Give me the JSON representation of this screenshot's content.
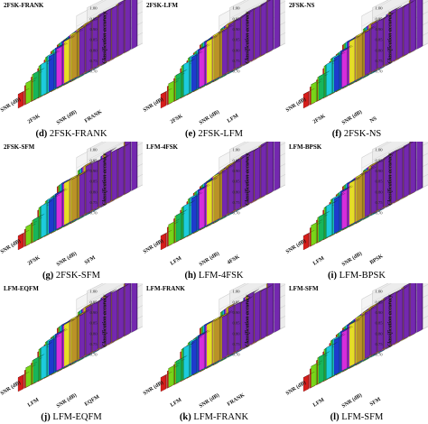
{
  "figure": {
    "axis_labels": {
      "snr": "SNR (dB)",
      "zlabel": "Classification accuracy"
    },
    "z_ticks": [
      "1.00",
      "0.95",
      "0.90",
      "0.85",
      "0.80",
      "0.75",
      "0.70"
    ],
    "row_colors": [
      "#e0201c",
      "#7ee01a",
      "#18c060",
      "#1fd6e8",
      "#1f3fd8",
      "#e030e8",
      "#f2e92a",
      "#c49a2a",
      "#7a2ab8"
    ]
  },
  "panels": [
    {
      "id": "d",
      "title": "2FSK-FRANK",
      "letter": "(d)",
      "caption": "2FSK-FRANK",
      "axis_left": "2FSK",
      "axis_right": "FRANK"
    },
    {
      "id": "e",
      "title": "2FSK-LFM",
      "letter": "(e)",
      "caption": "2FSK-LFM",
      "axis_left": "2FSK",
      "axis_right": "LFM"
    },
    {
      "id": "f",
      "title": "2FSK-NS",
      "letter": "(f)",
      "caption": "2FSK-NS",
      "axis_left": "2FSK",
      "axis_right": "NS"
    },
    {
      "id": "g",
      "title": "2FSK-SFM",
      "letter": "(g)",
      "caption": "2FSK-SFM",
      "axis_left": "2FSK",
      "axis_right": "SFM"
    },
    {
      "id": "h",
      "title": "LFM-4FSK",
      "letter": "(h)",
      "caption": "LFM-4FSK",
      "axis_left": "LFM",
      "axis_right": "4FSK"
    },
    {
      "id": "i",
      "title": "LFM-BPSK",
      "letter": "(i)",
      "caption": "LFM-BPSK",
      "axis_left": "LFM",
      "axis_right": "BPSK"
    },
    {
      "id": "j",
      "title": "LFM-EQFM",
      "letter": "(j)",
      "caption": "LFM-EQFM",
      "axis_left": "LFM",
      "axis_right": "EQFM"
    },
    {
      "id": "k",
      "title": "LFM-FRANK",
      "letter": "(k)",
      "caption": "LFM-FRANK",
      "axis_left": "LFM",
      "axis_right": "FRANK"
    },
    {
      "id": "l",
      "title": "LFM-SFM",
      "letter": "(l)",
      "caption": "LFM-SFM",
      "axis_left": "LFM",
      "axis_right": "SFM"
    }
  ],
  "chart_data": {
    "type": "bar",
    "zlabel": "Classification accuracy",
    "zlim": [
      0.7,
      1.0
    ],
    "panels": [
      "2FSK-FRANK",
      "2FSK-LFM",
      "2FSK-NS",
      "2FSK-SFM",
      "LFM-4FSK",
      "LFM-BPSK",
      "LFM-EQFM",
      "LFM-FRANK",
      "LFM-SFM"
    ],
    "rows": 9,
    "columns": 9,
    "values": [
      [
        0.78,
        0.81,
        0.84,
        0.87,
        0.9,
        0.93,
        0.95,
        0.96,
        0.97
      ],
      [
        0.82,
        0.85,
        0.88,
        0.91,
        0.93,
        0.95,
        0.96,
        0.97,
        0.98
      ],
      [
        0.85,
        0.88,
        0.91,
        0.93,
        0.95,
        0.96,
        0.97,
        0.98,
        0.98
      ],
      [
        0.88,
        0.91,
        0.93,
        0.95,
        0.96,
        0.97,
        0.98,
        0.98,
        0.99
      ],
      [
        0.9,
        0.93,
        0.95,
        0.96,
        0.97,
        0.98,
        0.98,
        0.99,
        0.99
      ],
      [
        0.92,
        0.94,
        0.96,
        0.97,
        0.98,
        0.98,
        0.99,
        0.99,
        0.99
      ],
      [
        0.94,
        0.96,
        0.97,
        0.98,
        0.98,
        0.99,
        0.99,
        0.99,
        1.0
      ],
      [
        0.95,
        0.97,
        0.98,
        0.98,
        0.99,
        0.99,
        0.99,
        1.0,
        1.0
      ],
      [
        0.96,
        0.97,
        0.98,
        0.99,
        0.99,
        0.99,
        1.0,
        1.0,
        1.0
      ]
    ]
  }
}
